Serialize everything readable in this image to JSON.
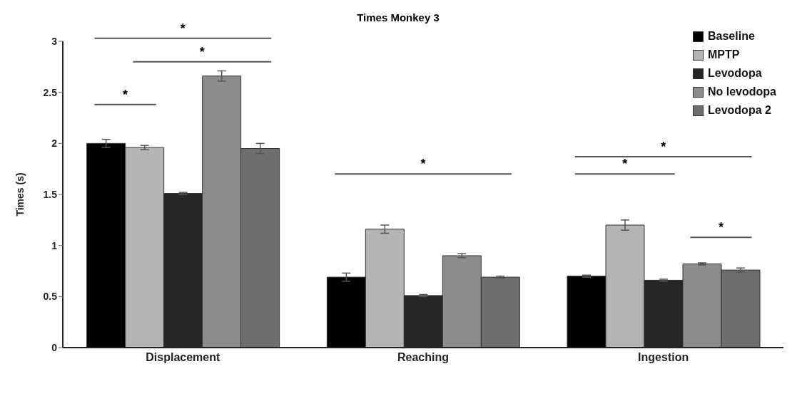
{
  "chart_data": {
    "type": "bar",
    "title": "Times Monkey 3",
    "ylabel": "Times (s)",
    "categories": [
      "Displacement",
      "Reaching",
      "Ingestion"
    ],
    "series": [
      {
        "name": "Baseline",
        "color": "#000000",
        "values": [
          2.0,
          0.69,
          0.7
        ],
        "errors": [
          0.04,
          0.04,
          0.01
        ]
      },
      {
        "name": "MPTP",
        "color": "#b4b4b4",
        "values": [
          1.96,
          1.16,
          1.2
        ],
        "errors": [
          0.02,
          0.04,
          0.05
        ]
      },
      {
        "name": "Levodopa",
        "color": "#262626",
        "values": [
          1.51,
          0.51,
          0.66
        ],
        "errors": [
          0.01,
          0.01,
          0.01
        ]
      },
      {
        "name": "No levodopa",
        "color": "#8c8c8c",
        "values": [
          2.66,
          0.9,
          0.82
        ],
        "errors": [
          0.05,
          0.02,
          0.01
        ]
      },
      {
        "name": "Levodopa 2",
        "color": "#6e6e6e",
        "values": [
          1.95,
          0.69,
          0.76
        ],
        "errors": [
          0.05,
          0.01,
          0.02
        ]
      }
    ],
    "ylim": [
      0,
      3
    ],
    "yticks": [
      0,
      0.5,
      1,
      1.5,
      2,
      2.5,
      3
    ],
    "grid": false,
    "legend": "top right",
    "annotations": [
      "*",
      "*",
      "*",
      "*",
      "*",
      "*",
      "*"
    ]
  }
}
